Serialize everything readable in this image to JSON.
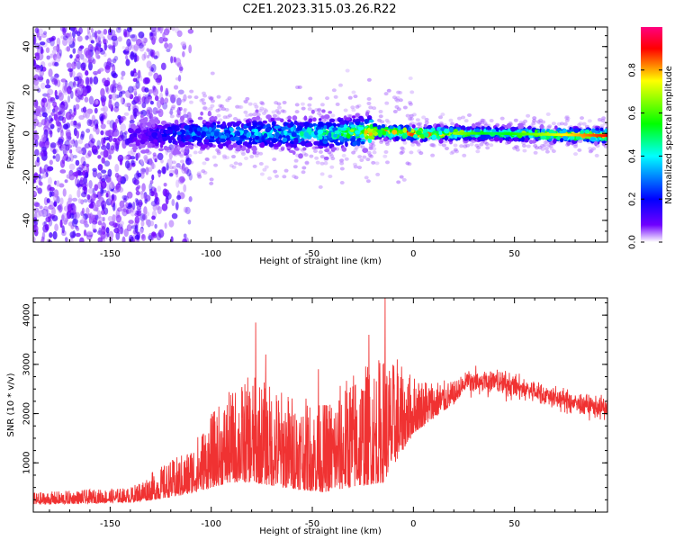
{
  "title": "C2E1.2023.315.03.26.R22",
  "chart_data": [
    {
      "type": "heatmap",
      "xlabel": "Height of straight line (km)",
      "ylabel": "Frequency (Hz)",
      "xlim": [
        -188,
        96
      ],
      "ylim": [
        -50,
        49
      ],
      "xticks": [
        -150,
        -100,
        -50,
        0,
        50
      ],
      "xtick_labels": [
        "-150",
        "-100",
        "-50",
        "0",
        "50"
      ],
      "yticks": [
        -40,
        -20,
        0,
        20,
        40
      ],
      "ytick_labels": [
        "-40",
        "-20",
        "0",
        "20",
        "40"
      ],
      "colorbar": {
        "label": "Normalized spectral amplitude",
        "range": [
          0,
          1
        ],
        "ticks": [
          0.0,
          0.2,
          0.4,
          0.6,
          0.8
        ],
        "tick_labels": [
          "0.0",
          "0.2",
          "0.4",
          "0.6",
          "0.8"
        ],
        "colormap": [
          "#ffffff",
          "#7000ff",
          "#0000ff",
          "#00ffff",
          "#00ff00",
          "#ffff00",
          "#ff0000",
          "#ff0080"
        ]
      },
      "ridge": [
        {
          "x": -188,
          "f": 0,
          "amp": 0.05
        },
        {
          "x": -135,
          "f": -1,
          "amp": 0.12
        },
        {
          "x": -110,
          "f": 0,
          "amp": 0.3
        },
        {
          "x": -80,
          "f": 0,
          "amp": 0.38
        },
        {
          "x": -40,
          "f": 0,
          "amp": 0.45
        },
        {
          "x": -18,
          "f": 1,
          "amp": 0.8
        },
        {
          "x": 0,
          "f": 0,
          "amp": 0.85
        },
        {
          "x": 40,
          "f": 0,
          "amp": 0.5
        },
        {
          "x": 96,
          "f": -1,
          "amp": 0.9
        }
      ],
      "grid": false
    },
    {
      "type": "line",
      "xlabel": "Height of straight line (km)",
      "ylabel": "SNR (10 * v/v)",
      "xlim": [
        -188,
        96
      ],
      "ylim": [
        0,
        4350
      ],
      "xticks": [
        -150,
        -100,
        -50,
        0,
        50
      ],
      "xtick_labels": [
        "-150",
        "-100",
        "-50",
        "0",
        "50"
      ],
      "yticks": [
        1000,
        2000,
        3000,
        4000
      ],
      "ytick_labels": [
        "1000",
        "2000",
        "3000",
        "4000"
      ],
      "color": "#f03232",
      "envelope": {
        "x": [
          -188,
          -140,
          -128,
          -112,
          -100,
          -90,
          -80,
          -65,
          -45,
          -30,
          -15,
          0,
          10,
          20,
          30,
          40,
          60,
          80,
          96
        ],
        "base": [
          150,
          200,
          250,
          350,
          500,
          600,
          600,
          500,
          400,
          500,
          600,
          1600,
          1900,
          2200,
          2700,
          2650,
          2450,
          2200,
          2100
        ],
        "amp": [
          250,
          300,
          600,
          900,
          1500,
          1900,
          2200,
          2000,
          1800,
          2400,
          2600,
          1200,
          800,
          450,
          300,
          300,
          250,
          250,
          250
        ]
      },
      "spikes": [
        {
          "x": -78,
          "y": 3850
        },
        {
          "x": -73,
          "y": 3200
        },
        {
          "x": -47,
          "y": 2900
        },
        {
          "x": -22,
          "y": 3600
        },
        {
          "x": -14,
          "y": 4350
        },
        {
          "x": -8,
          "y": 3100
        }
      ],
      "grid": false
    }
  ]
}
